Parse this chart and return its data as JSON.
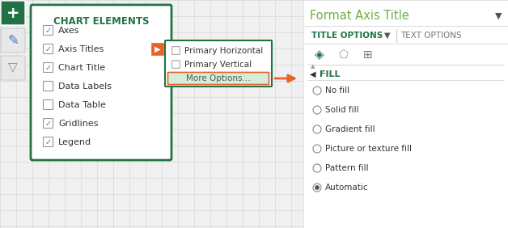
{
  "bg_color": "#f0f0f0",
  "grid_color": "#d0d0d0",
  "green_dark": "#217346",
  "green_light": "#e8f5ee",
  "orange": "#E8622A",
  "white": "#ffffff",
  "title_panel_bg": "#ffffff",
  "panel_title": "Format Axis Title",
  "panel_title_color": "#70AD47",
  "title_options_text": "TITLE OPTIONS",
  "text_options_text": "TEXT OPTIONS",
  "fill_label": "FILL",
  "chart_elements_title": "CHART ELEMENTS",
  "chart_items_checked": [
    "Axes",
    "Axis Titles",
    "Chart Title",
    "Gridlines",
    "Legend"
  ],
  "chart_items_unchecked": [
    "Data Labels",
    "Data Table"
  ],
  "chart_items_all": [
    "Axes",
    "Axis Titles",
    "Chart Title",
    "Data Labels",
    "Data Table",
    "Gridlines",
    "Legend"
  ],
  "submenu_items": [
    "Primary Horizontal",
    "Primary Vertical",
    "More Options..."
  ],
  "fill_options": [
    "No fill",
    "Solid fill",
    "Gradient fill",
    "Picture or texture fill",
    "Pattern fill",
    "Automatic"
  ],
  "fill_selected": "Automatic"
}
